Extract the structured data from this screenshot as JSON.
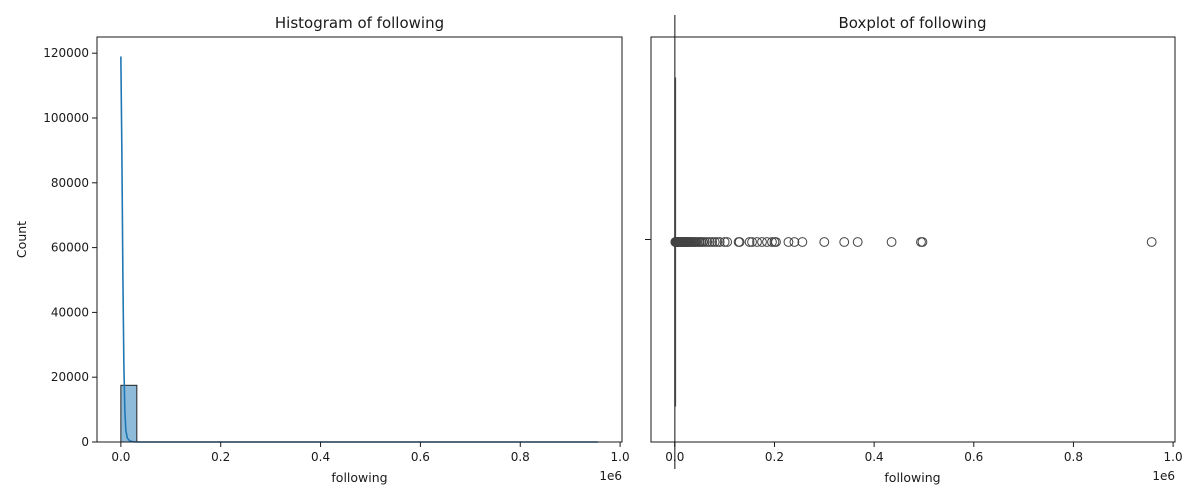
{
  "chart_data": [
    {
      "type": "histogram",
      "title": "Histogram of following",
      "xlabel": "following",
      "ylabel": "Count",
      "x_offset_label": "1e6",
      "xlim": [
        -0.0478,
        1.0038
      ],
      "ylim": [
        0,
        125000
      ],
      "x_ticks": [
        0,
        0.2,
        0.4,
        0.6,
        0.8,
        1.0
      ],
      "x_tick_labels": [
        "0.0",
        "0.2",
        "0.4",
        "0.6",
        "0.8",
        "1.0"
      ],
      "y_ticks": [
        0,
        20000,
        40000,
        60000,
        80000,
        100000,
        120000
      ],
      "y_tick_labels": [
        "0",
        "20000",
        "40000",
        "60000",
        "80000",
        "100000",
        "120000"
      ],
      "bins": [
        {
          "x0": 0.0,
          "x1": 0.032,
          "count": 17500
        },
        {
          "x0": 0.032,
          "x1": 0.956,
          "count": 0
        }
      ],
      "bar_color": "#8fbbda",
      "bar_edge": "#222222",
      "kde": {
        "color": "#1f77b4",
        "points": [
          [
            0.0,
            119000
          ],
          [
            0.002,
            90000
          ],
          [
            0.004,
            52000
          ],
          [
            0.006,
            24000
          ],
          [
            0.008,
            9500
          ],
          [
            0.01,
            3500
          ],
          [
            0.013,
            1200
          ],
          [
            0.018,
            300
          ],
          [
            0.025,
            60
          ],
          [
            0.04,
            0
          ],
          [
            0.956,
            0
          ]
        ]
      },
      "grid": false
    },
    {
      "type": "boxplot",
      "title": "Boxplot of following",
      "xlabel": "following",
      "x_offset_label": "1e6",
      "xlim": [
        -0.0478,
        1.0038
      ],
      "x_ticks": [
        0,
        0.2,
        0.4,
        0.6,
        0.8,
        1.0
      ],
      "x_tick_labels": [
        "0.0",
        "0.2",
        "0.4",
        "0.6",
        "0.8",
        "1.0"
      ],
      "box": {
        "min": 0.0,
        "q1": 0.0,
        "median": 0.0,
        "q3": 0.0003,
        "max": 0.0007
      },
      "outliers": [
        0.001,
        0.0015,
        0.002,
        0.0025,
        0.003,
        0.0035,
        0.004,
        0.0045,
        0.005,
        0.0055,
        0.006,
        0.0065,
        0.007,
        0.0075,
        0.008,
        0.0085,
        0.009,
        0.0095,
        0.01,
        0.011,
        0.012,
        0.013,
        0.014,
        0.015,
        0.016,
        0.017,
        0.018,
        0.019,
        0.02,
        0.021,
        0.022,
        0.023,
        0.024,
        0.025,
        0.026,
        0.027,
        0.028,
        0.029,
        0.03,
        0.032,
        0.034,
        0.036,
        0.038,
        0.04,
        0.042,
        0.045,
        0.048,
        0.05,
        0.053,
        0.056,
        0.06,
        0.065,
        0.07,
        0.075,
        0.08,
        0.085,
        0.09,
        0.1,
        0.105,
        0.128,
        0.13,
        0.15,
        0.155,
        0.165,
        0.175,
        0.185,
        0.195,
        0.2,
        0.203,
        0.228,
        0.24,
        0.256,
        0.3,
        0.34,
        0.367,
        0.435,
        0.494,
        0.497,
        0.957
      ],
      "box_color": "#1f77b4",
      "line_color": "#444444",
      "grid": false
    }
  ]
}
